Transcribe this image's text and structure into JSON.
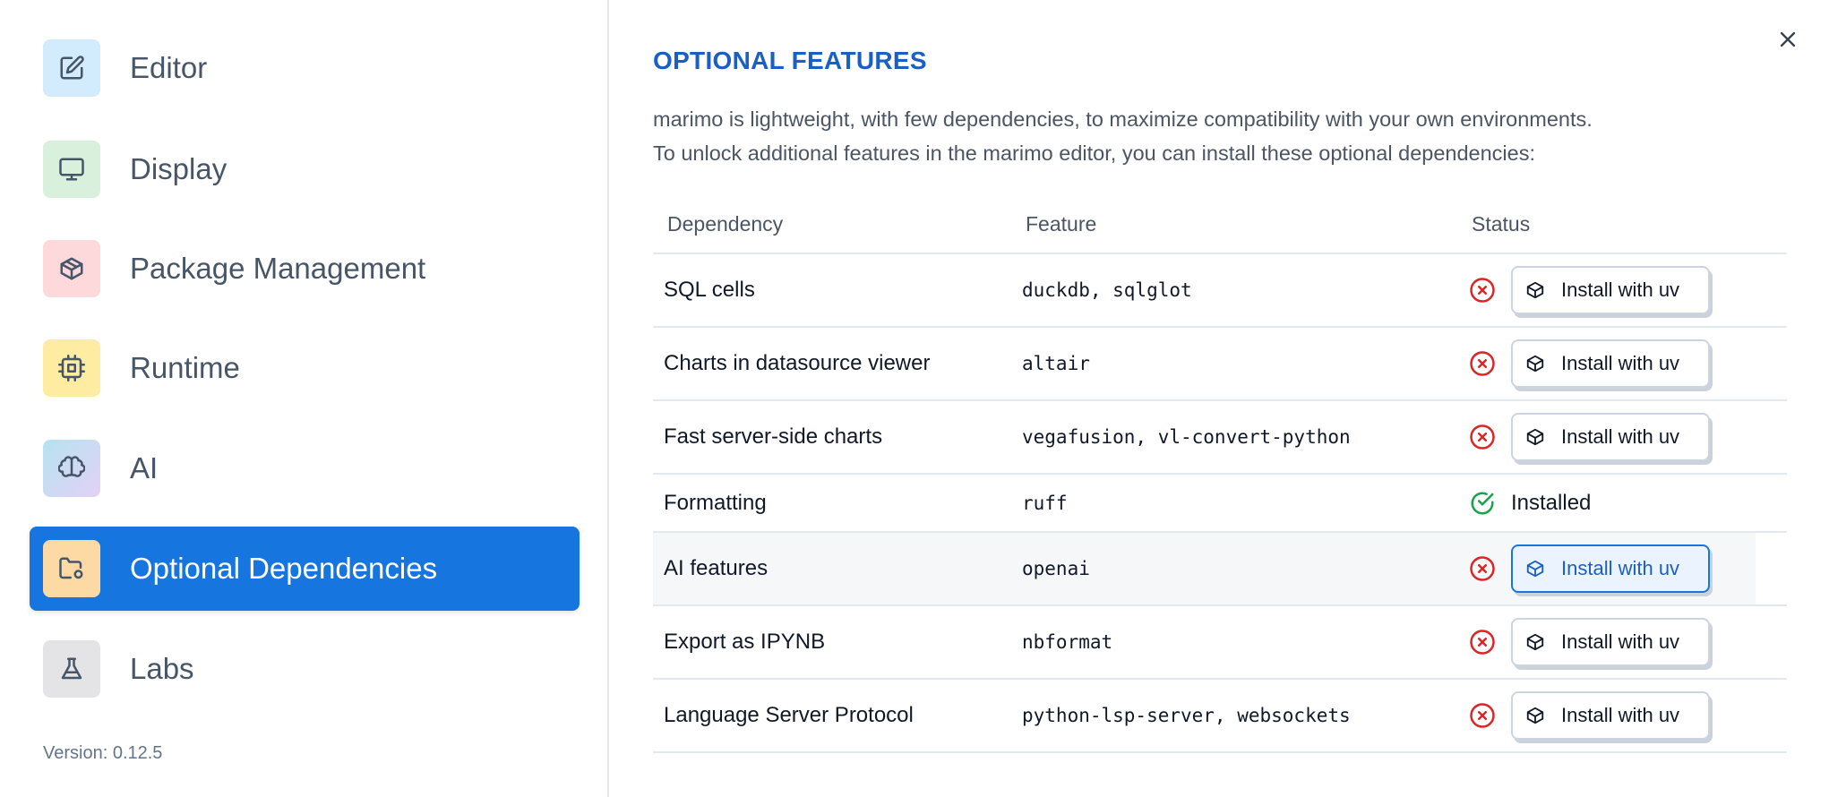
{
  "sidebar": {
    "items": [
      {
        "label": "Editor",
        "icon": "edit-icon",
        "color": "#d2ebfd"
      },
      {
        "label": "Display",
        "icon": "monitor-icon",
        "color": "#d8f0dc"
      },
      {
        "label": "Package Management",
        "icon": "package-icon",
        "color": "#fdd9db"
      },
      {
        "label": "Runtime",
        "icon": "cpu-icon",
        "color": "#fdeca1"
      },
      {
        "label": "AI",
        "icon": "brain-icon",
        "color": "#cfdcef"
      },
      {
        "label": "Optional Dependencies",
        "icon": "folder-cog-icon",
        "color": "#fdd9a3",
        "active": true
      },
      {
        "label": "Labs",
        "icon": "flask-icon",
        "color": "#e4e4e7"
      }
    ],
    "version": "Version: 0.12.5"
  },
  "main": {
    "title": "OPTIONAL FEATURES",
    "description_line1": "marimo is lightweight, with few dependencies, to maximize compatibility with your own environments.",
    "description_line2": "To unlock additional features in the marimo editor, you can install these optional dependencies:",
    "columns": [
      "Dependency",
      "Feature",
      "Status"
    ],
    "rows": [
      {
        "dependency": "SQL cells",
        "feature": "duckdb, sqlglot",
        "status": "missing",
        "action": "Install with uv"
      },
      {
        "dependency": "Charts in datasource viewer",
        "feature": "altair",
        "status": "missing",
        "action": "Install with uv"
      },
      {
        "dependency": "Fast server-side charts",
        "feature": "vegafusion, vl-convert-python",
        "status": "missing",
        "action": "Install with uv"
      },
      {
        "dependency": "Formatting",
        "feature": "ruff",
        "status": "installed",
        "status_text": "Installed"
      },
      {
        "dependency": "AI features",
        "feature": "openai",
        "status": "missing",
        "action": "Install with uv"
      },
      {
        "dependency": "Export as IPYNB",
        "feature": "nbformat",
        "status": "missing",
        "action": "Install with uv"
      },
      {
        "dependency": "Language Server Protocol",
        "feature": "python-lsp-server, websockets",
        "status": "missing",
        "action": "Install with uv"
      }
    ]
  },
  "colors": {
    "accent": "#1775e0",
    "title": "#1a5fc4",
    "error": "#dc2626",
    "success": "#16a34a"
  }
}
